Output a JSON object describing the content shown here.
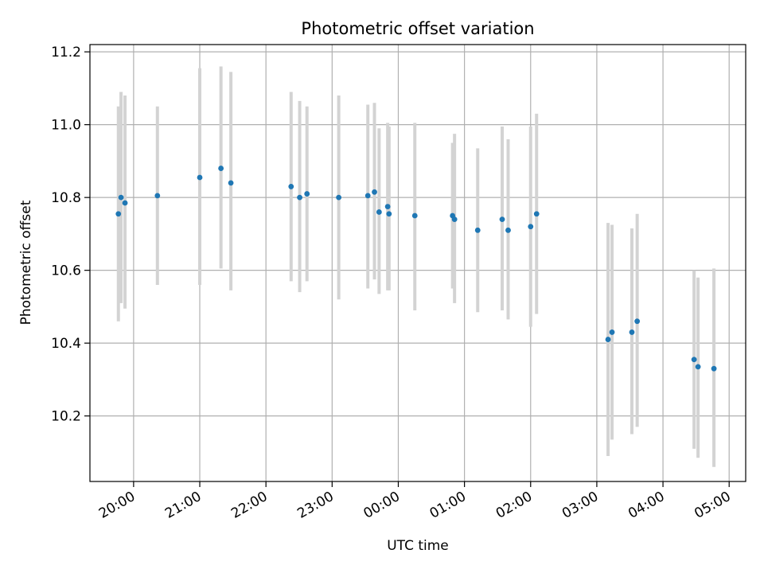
{
  "chart_data": {
    "type": "scatter",
    "title": "Photometric offset variation",
    "xlabel": "UTC time",
    "ylabel": "Photometric offset",
    "x_units": "hours since 19:00 UTC",
    "xlim": [
      0.34,
      10.25
    ],
    "ylim": [
      10.02,
      11.22
    ],
    "grid": true,
    "x_ticks": [
      {
        "value": 1,
        "label": "20:00"
      },
      {
        "value": 2,
        "label": "21:00"
      },
      {
        "value": 3,
        "label": "22:00"
      },
      {
        "value": 4,
        "label": "23:00"
      },
      {
        "value": 5,
        "label": "00:00"
      },
      {
        "value": 6,
        "label": "01:00"
      },
      {
        "value": 7,
        "label": "02:00"
      },
      {
        "value": 8,
        "label": "03:00"
      },
      {
        "value": 9,
        "label": "04:00"
      },
      {
        "value": 10,
        "label": "05:00"
      }
    ],
    "y_ticks": [
      {
        "value": 10.2,
        "label": "10.2"
      },
      {
        "value": 10.4,
        "label": "10.4"
      },
      {
        "value": 10.6,
        "label": "10.6"
      },
      {
        "value": 10.8,
        "label": "10.8"
      },
      {
        "value": 11.0,
        "label": "11.0"
      },
      {
        "value": 11.2,
        "label": "11.2"
      }
    ],
    "colors": {
      "marker": "#1f77b4",
      "errorbar": "#d3d3d3",
      "grid": "#b0b0b0"
    },
    "points": [
      {
        "x": 0.77,
        "y": 10.755,
        "ylow": 10.46,
        "yhigh": 11.05
      },
      {
        "x": 0.81,
        "y": 10.8,
        "ylow": 10.51,
        "yhigh": 11.09
      },
      {
        "x": 0.87,
        "y": 10.785,
        "ylow": 10.495,
        "yhigh": 11.08
      },
      {
        "x": 1.36,
        "y": 10.805,
        "ylow": 10.56,
        "yhigh": 11.05
      },
      {
        "x": 2.0,
        "y": 10.855,
        "ylow": 10.56,
        "yhigh": 11.155
      },
      {
        "x": 2.32,
        "y": 10.88,
        "ylow": 10.605,
        "yhigh": 11.16
      },
      {
        "x": 2.47,
        "y": 10.84,
        "ylow": 10.545,
        "yhigh": 11.145
      },
      {
        "x": 3.38,
        "y": 10.83,
        "ylow": 10.57,
        "yhigh": 11.09
      },
      {
        "x": 3.51,
        "y": 10.8,
        "ylow": 10.54,
        "yhigh": 11.065
      },
      {
        "x": 3.62,
        "y": 10.81,
        "ylow": 10.57,
        "yhigh": 11.05
      },
      {
        "x": 4.1,
        "y": 10.8,
        "ylow": 10.52,
        "yhigh": 11.08
      },
      {
        "x": 4.54,
        "y": 10.805,
        "ylow": 10.55,
        "yhigh": 11.055
      },
      {
        "x": 4.64,
        "y": 10.815,
        "ylow": 10.575,
        "yhigh": 11.06
      },
      {
        "x": 4.71,
        "y": 10.76,
        "ylow": 10.535,
        "yhigh": 10.99
      },
      {
        "x": 4.84,
        "y": 10.775,
        "ylow": 10.545,
        "yhigh": 11.005
      },
      {
        "x": 4.86,
        "y": 10.755,
        "ylow": 10.545,
        "yhigh": 10.995
      },
      {
        "x": 5.25,
        "y": 10.75,
        "ylow": 10.49,
        "yhigh": 11.005
      },
      {
        "x": 5.82,
        "y": 10.75,
        "ylow": 10.55,
        "yhigh": 10.95
      },
      {
        "x": 5.85,
        "y": 10.74,
        "ylow": 10.51,
        "yhigh": 10.975
      },
      {
        "x": 6.2,
        "y": 10.71,
        "ylow": 10.485,
        "yhigh": 10.935
      },
      {
        "x": 6.57,
        "y": 10.74,
        "ylow": 10.49,
        "yhigh": 10.995
      },
      {
        "x": 6.66,
        "y": 10.71,
        "ylow": 10.465,
        "yhigh": 10.96
      },
      {
        "x": 7.0,
        "y": 10.72,
        "ylow": 10.445,
        "yhigh": 10.995
      },
      {
        "x": 7.09,
        "y": 10.755,
        "ylow": 10.48,
        "yhigh": 11.03
      },
      {
        "x": 8.17,
        "y": 10.41,
        "ylow": 10.09,
        "yhigh": 10.73
      },
      {
        "x": 8.23,
        "y": 10.43,
        "ylow": 10.135,
        "yhigh": 10.725
      },
      {
        "x": 8.53,
        "y": 10.43,
        "ylow": 10.15,
        "yhigh": 10.715
      },
      {
        "x": 8.61,
        "y": 10.46,
        "ylow": 10.17,
        "yhigh": 10.755
      },
      {
        "x": 9.47,
        "y": 10.355,
        "ylow": 10.11,
        "yhigh": 10.6
      },
      {
        "x": 9.53,
        "y": 10.335,
        "ylow": 10.085,
        "yhigh": 10.58
      },
      {
        "x": 9.77,
        "y": 10.33,
        "ylow": 10.06,
        "yhigh": 10.605
      }
    ]
  }
}
